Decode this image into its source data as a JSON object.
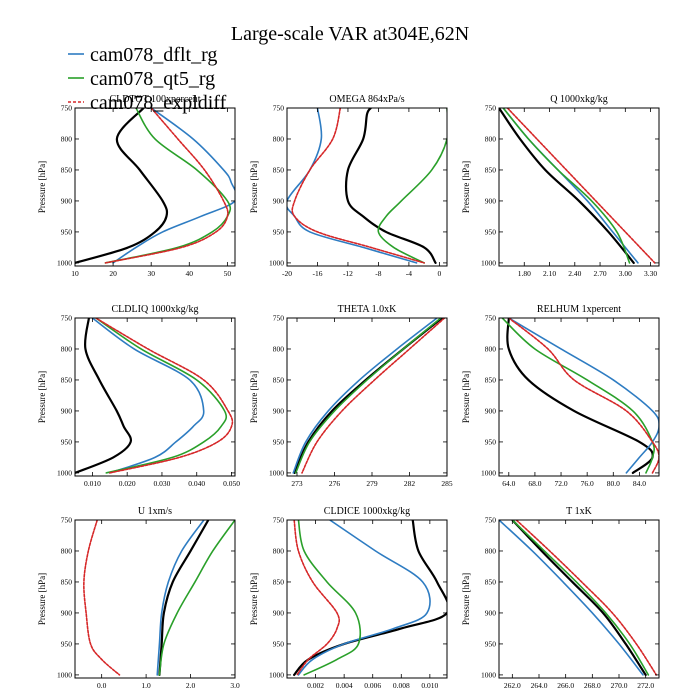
{
  "title": "Large-scale VAR at304E,62N",
  "legend": {
    "placement": "top-left",
    "entries": [
      {
        "name": "cam078_dflt_rg",
        "color": "#2e7cc2",
        "dashed": false
      },
      {
        "name": "cam078_qt5_rg",
        "color": "#2aa02a",
        "dashed": false
      },
      {
        "name": "cam078_expldiff",
        "color": "#d62728",
        "dashed": true
      }
    ]
  },
  "control_color": "#000000",
  "chart_data": [
    {
      "type": "line",
      "title": "CLDTOT 100xpercent",
      "ylabel": "Pressure [hPa]",
      "xlim": [
        10,
        52
      ],
      "ylim": [
        1005,
        750
      ],
      "xticks": [
        10,
        20,
        30,
        40,
        50
      ],
      "xtick_labels": [
        "10",
        "20",
        "30",
        "40",
        "50"
      ],
      "yticks": [
        750,
        800,
        850,
        900,
        950,
        1000
      ],
      "grid": false,
      "series": [
        {
          "name": "control",
          "y": [
            750,
            800,
            850,
            900,
            925,
            950,
            975,
            1000
          ],
          "x": [
            28,
            21,
            27,
            33,
            34,
            31,
            24,
            10
          ]
        },
        {
          "name": "cam078_dflt_rg",
          "y": [
            750,
            800,
            850,
            870,
            900,
            925,
            950,
            975,
            1000
          ],
          "x": [
            30,
            41,
            49,
            51,
            52,
            43,
            33,
            26,
            20
          ]
        },
        {
          "name": "cam078_qt5_rg",
          "y": [
            750,
            800,
            850,
            900,
            925,
            950,
            975,
            1000
          ],
          "x": [
            26,
            31,
            42,
            50,
            50,
            46,
            37,
            18
          ]
        },
        {
          "name": "cam078_expldiff",
          "y": [
            750,
            800,
            850,
            900,
            925,
            950,
            975,
            1000
          ],
          "x": [
            30,
            37,
            44,
            49,
            50,
            47,
            38,
            18
          ]
        }
      ]
    },
    {
      "type": "line",
      "title": "OMEGA 864xPa/s",
      "ylabel": "Pressure [hPa]",
      "xlim": [
        -20,
        1
      ],
      "ylim": [
        1005,
        750
      ],
      "xticks": [
        -20,
        -16,
        -12,
        -8,
        -4,
        0
      ],
      "xtick_labels": [
        "-20",
        "-16",
        "-12",
        "-8",
        "-4",
        "0"
      ],
      "yticks": [
        750,
        800,
        850,
        900,
        950,
        1000
      ],
      "grid": false,
      "series": [
        {
          "name": "control",
          "y": [
            750,
            760,
            800,
            850,
            900,
            925,
            950,
            975,
            1000
          ],
          "x": [
            -9,
            -9.5,
            -10,
            -12,
            -12,
            -10,
            -7,
            -2,
            -0.5
          ]
        },
        {
          "name": "cam078_dflt_rg",
          "y": [
            750,
            800,
            850,
            900,
            925,
            950,
            975,
            1000
          ],
          "x": [
            -16,
            -15.5,
            -17,
            -20,
            -19,
            -17,
            -10,
            -3
          ]
        },
        {
          "name": "cam078_qt5_rg",
          "y": [
            750,
            800,
            850,
            900,
            925,
            950,
            975,
            1000
          ],
          "x": [
            1,
            1,
            -1,
            -5,
            -7,
            -8,
            -6,
            -2
          ]
        },
        {
          "name": "cam078_expldiff",
          "y": [
            750,
            800,
            850,
            900,
            925,
            950,
            975,
            1000
          ],
          "x": [
            -13,
            -14,
            -17,
            -19,
            -19,
            -16,
            -9,
            -2
          ]
        }
      ]
    },
    {
      "type": "line",
      "title": "Q 1000xkg/kg",
      "ylabel": "Pressure [hPa]",
      "xlim": [
        1.5,
        3.4
      ],
      "ylim": [
        1005,
        750
      ],
      "xticks": [
        1.8,
        2.1,
        2.4,
        2.7,
        3.0,
        3.3
      ],
      "xtick_labels": [
        "1.80",
        "2.10",
        "2.40",
        "2.70",
        "3.00",
        "3.30"
      ],
      "yticks": [
        750,
        800,
        850,
        900,
        950,
        1000
      ],
      "grid": false,
      "series": [
        {
          "name": "control",
          "y": [
            750,
            800,
            850,
            900,
            950,
            1000
          ],
          "x": [
            1.5,
            1.75,
            2.05,
            2.45,
            2.8,
            3.1
          ]
        },
        {
          "name": "cam078_dflt_rg",
          "y": [
            750,
            800,
            850,
            900,
            950,
            1000
          ],
          "x": [
            1.55,
            1.85,
            2.2,
            2.55,
            2.85,
            3.15
          ]
        },
        {
          "name": "cam078_qt5_rg",
          "y": [
            750,
            800,
            850,
            900,
            950,
            1000
          ],
          "x": [
            1.55,
            1.85,
            2.2,
            2.6,
            2.9,
            3.05
          ]
        },
        {
          "name": "cam078_expldiff",
          "y": [
            750,
            800,
            850,
            900,
            950,
            1000
          ],
          "x": [
            1.6,
            1.95,
            2.3,
            2.65,
            3.0,
            3.35
          ]
        }
      ]
    },
    {
      "type": "line",
      "title": "CLDLIQ 1000xkg/kg",
      "ylabel": "Pressure [hPa]",
      "xlim": [
        0.005,
        0.051
      ],
      "ylim": [
        1005,
        750
      ],
      "xticks": [
        0.01,
        0.02,
        0.03,
        0.04,
        0.05
      ],
      "xtick_labels": [
        "0.010",
        "0.020",
        "0.030",
        "0.040",
        "0.050"
      ],
      "yticks": [
        750,
        800,
        850,
        900,
        950,
        1000
      ],
      "grid": false,
      "series": [
        {
          "name": "control",
          "y": [
            750,
            800,
            850,
            900,
            925,
            950,
            975,
            1000
          ],
          "x": [
            0.009,
            0.008,
            0.012,
            0.017,
            0.019,
            0.021,
            0.016,
            0.005
          ]
        },
        {
          "name": "cam078_dflt_rg",
          "y": [
            750,
            800,
            850,
            900,
            925,
            950,
            975,
            1000
          ],
          "x": [
            0.01,
            0.022,
            0.038,
            0.042,
            0.039,
            0.034,
            0.028,
            0.015
          ]
        },
        {
          "name": "cam078_qt5_rg",
          "y": [
            750,
            800,
            850,
            900,
            925,
            950,
            975,
            1000
          ],
          "x": [
            0.011,
            0.024,
            0.04,
            0.048,
            0.047,
            0.042,
            0.033,
            0.014
          ]
        },
        {
          "name": "cam078_expldiff",
          "y": [
            750,
            800,
            850,
            900,
            925,
            950,
            975,
            1000
          ],
          "x": [
            0.011,
            0.026,
            0.042,
            0.049,
            0.05,
            0.046,
            0.035,
            0.015
          ]
        }
      ]
    },
    {
      "type": "line",
      "title": "THETA 1.0xK",
      "ylabel": "Pressure [hPa]",
      "xlim": [
        272.2,
        285
      ],
      "ylim": [
        1005,
        750
      ],
      "xticks": [
        273,
        276,
        279,
        282,
        285
      ],
      "xtick_labels": [
        "273",
        "276",
        "279",
        "282",
        "285"
      ],
      "yticks": [
        750,
        800,
        850,
        900,
        950,
        1000
      ],
      "grid": false,
      "series": [
        {
          "name": "control",
          "y": [
            750,
            800,
            850,
            900,
            950,
            1000
          ],
          "x": [
            284.6,
            281.5,
            278.5,
            275.8,
            273.9,
            272.8
          ]
        },
        {
          "name": "cam078_dflt_rg",
          "y": [
            750,
            800,
            850,
            900,
            950,
            1000
          ],
          "x": [
            284.2,
            281,
            278,
            275.5,
            273.7,
            272.7
          ]
        },
        {
          "name": "cam078_qt5_rg",
          "y": [
            750,
            800,
            850,
            900,
            950,
            1000
          ],
          "x": [
            284.5,
            281.5,
            278.6,
            276,
            274,
            272.9
          ]
        },
        {
          "name": "cam078_expldiff",
          "y": [
            750,
            800,
            850,
            900,
            950,
            1000
          ],
          "x": [
            284.8,
            282,
            279.2,
            276.6,
            274.6,
            273.4
          ]
        }
      ]
    },
    {
      "type": "line",
      "title": "RELHUM 1xpercent",
      "ylabel": "Pressure [hPa]",
      "xlim": [
        62.5,
        87
      ],
      "ylim": [
        1005,
        750
      ],
      "xticks": [
        64,
        68,
        72,
        76,
        80,
        84
      ],
      "xtick_labels": [
        "64.0",
        "68.0",
        "72.0",
        "76.0",
        "80.0",
        "84.0"
      ],
      "yticks": [
        750,
        800,
        850,
        900,
        950,
        1000
      ],
      "grid": false,
      "series": [
        {
          "name": "control",
          "y": [
            750,
            800,
            850,
            900,
            950,
            975,
            1000
          ],
          "x": [
            64,
            64,
            67,
            74,
            84,
            86,
            83
          ]
        },
        {
          "name": "cam078_dflt_rg",
          "y": [
            750,
            800,
            850,
            900,
            925,
            950,
            975,
            1000
          ],
          "x": [
            64,
            72,
            80,
            86,
            87,
            86,
            84,
            82
          ]
        },
        {
          "name": "cam078_qt5_rg",
          "y": [
            750,
            800,
            850,
            900,
            950,
            975,
            1000
          ],
          "x": [
            63,
            68,
            76,
            83,
            86,
            86,
            85
          ]
        },
        {
          "name": "cam078_expldiff",
          "y": [
            750,
            800,
            850,
            900,
            950,
            975,
            1000
          ],
          "x": [
            64,
            70,
            74,
            82,
            86,
            87,
            86
          ]
        }
      ]
    },
    {
      "type": "line",
      "title": "U 1xm/s",
      "ylabel": "Pressure [hPa]",
      "xlim": [
        -0.6,
        3.0
      ],
      "ylim": [
        1005,
        750
      ],
      "xticks": [
        0,
        1,
        2,
        3
      ],
      "xtick_labels": [
        "0.0",
        "1.0",
        "2.0",
        "3.0"
      ],
      "yticks": [
        750,
        800,
        850,
        900,
        950,
        1000
      ],
      "grid": false,
      "series": [
        {
          "name": "control",
          "y": [
            750,
            800,
            850,
            900,
            950,
            1000
          ],
          "x": [
            2.4,
            2.0,
            1.6,
            1.4,
            1.35,
            1.3
          ]
        },
        {
          "name": "cam078_dflt_rg",
          "y": [
            750,
            800,
            850,
            900,
            950,
            1000
          ],
          "x": [
            2.3,
            1.8,
            1.5,
            1.35,
            1.3,
            1.25
          ]
        },
        {
          "name": "cam078_qt5_rg",
          "y": [
            750,
            800,
            850,
            900,
            950,
            1000
          ],
          "x": [
            3.0,
            2.5,
            2.1,
            1.7,
            1.4,
            1.3
          ]
        },
        {
          "name": "cam078_expldiff",
          "y": [
            750,
            800,
            850,
            900,
            950,
            975,
            1000
          ],
          "x": [
            -0.1,
            -0.3,
            -0.4,
            -0.35,
            -0.25,
            0.0,
            0.4
          ]
        }
      ]
    },
    {
      "type": "line",
      "title": "CLDICE 1000xkg/kg",
      "ylabel": "Pressure [hPa]",
      "xlim": [
        0.0,
        0.0112
      ],
      "ylim": [
        1005,
        750
      ],
      "xticks": [
        0.002,
        0.004,
        0.006,
        0.008,
        0.01
      ],
      "xtick_labels": [
        "0.002",
        "0.004",
        "0.006",
        "0.008",
        "0.010"
      ],
      "yticks": [
        750,
        800,
        850,
        900,
        950,
        1000
      ],
      "grid": false,
      "series": [
        {
          "name": "control",
          "y": [
            750,
            800,
            850,
            900,
            925,
            950,
            975,
            1000
          ],
          "x": [
            0.0088,
            0.0092,
            0.0105,
            0.0112,
            0.008,
            0.004,
            0.0015,
            0.0005
          ]
        },
        {
          "name": "cam078_dflt_rg",
          "y": [
            750,
            800,
            850,
            900,
            925,
            950,
            975,
            1000
          ],
          "x": [
            0.003,
            0.0062,
            0.0095,
            0.0098,
            0.0075,
            0.004,
            0.0018,
            0.0008
          ]
        },
        {
          "name": "cam078_qt5_rg",
          "y": [
            750,
            800,
            850,
            900,
            950,
            975,
            1000
          ],
          "x": [
            0.0008,
            0.0012,
            0.0028,
            0.0048,
            0.005,
            0.0035,
            0.0012
          ]
        },
        {
          "name": "cam078_expldiff",
          "y": [
            750,
            800,
            850,
            900,
            925,
            950,
            975,
            1000
          ],
          "x": [
            0.0005,
            0.0008,
            0.0018,
            0.0035,
            0.0035,
            0.0028,
            0.0015,
            0.0007
          ]
        }
      ]
    },
    {
      "type": "line",
      "title": "T 1xK",
      "ylabel": "Pressure [hPa]",
      "xlim": [
        261.0,
        273.0
      ],
      "ylim": [
        1005,
        750
      ],
      "xticks": [
        262,
        264,
        266,
        268,
        270,
        272
      ],
      "xtick_labels": [
        "262.0",
        "264.0",
        "266.0",
        "268.0",
        "270.0",
        "272.0"
      ],
      "yticks": [
        750,
        800,
        850,
        900,
        950,
        1000
      ],
      "grid": false,
      "series": [
        {
          "name": "control",
          "y": [
            750,
            800,
            850,
            900,
            950,
            1000
          ],
          "x": [
            262,
            264.2,
            266.5,
            268.8,
            270.5,
            272
          ]
        },
        {
          "name": "cam078_dflt_rg",
          "y": [
            750,
            800,
            850,
            900,
            950,
            1000
          ],
          "x": [
            261,
            263.5,
            265.8,
            268,
            270,
            271.8
          ]
        },
        {
          "name": "cam078_qt5_rg",
          "y": [
            750,
            800,
            850,
            900,
            950,
            1000
          ],
          "x": [
            262,
            264.4,
            266.8,
            269,
            270.8,
            272.2
          ]
        },
        {
          "name": "cam078_expldiff",
          "y": [
            750,
            800,
            850,
            900,
            950,
            1000
          ],
          "x": [
            262.3,
            264.8,
            267.2,
            269.5,
            271.3,
            272.8
          ]
        }
      ]
    }
  ]
}
